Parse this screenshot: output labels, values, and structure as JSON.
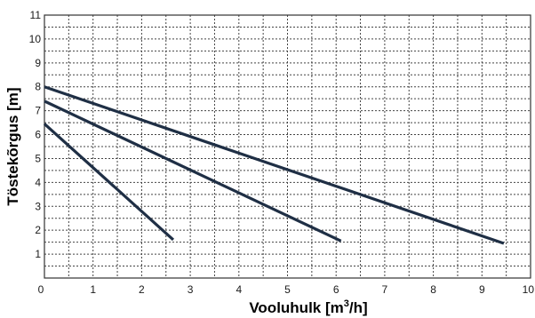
{
  "chart_data": {
    "type": "line",
    "xlabel_main": "Vooluhulk [m",
    "xlabel_sup": "3",
    "xlabel_tail": "/h]",
    "ylabel": "Töstekõrgus [m]",
    "xlim": [
      0,
      10
    ],
    "ylim": [
      0,
      11
    ],
    "xticks": [
      "0",
      "1",
      "2",
      "3",
      "4",
      "5",
      "6",
      "7",
      "8",
      "9",
      "10"
    ],
    "yticks": [
      "1",
      "2",
      "3",
      "4",
      "5",
      "6",
      "7",
      "8",
      "9",
      "10",
      "11"
    ],
    "grid": true,
    "line_color": "#1f2f45",
    "series": [
      {
        "x": [
          0,
          2.65
        ],
        "y": [
          6.45,
          1.6
        ]
      },
      {
        "x": [
          0,
          6.1
        ],
        "y": [
          7.4,
          1.55
        ]
      },
      {
        "x": [
          0,
          9.45
        ],
        "y": [
          8.0,
          1.45
        ]
      }
    ]
  }
}
